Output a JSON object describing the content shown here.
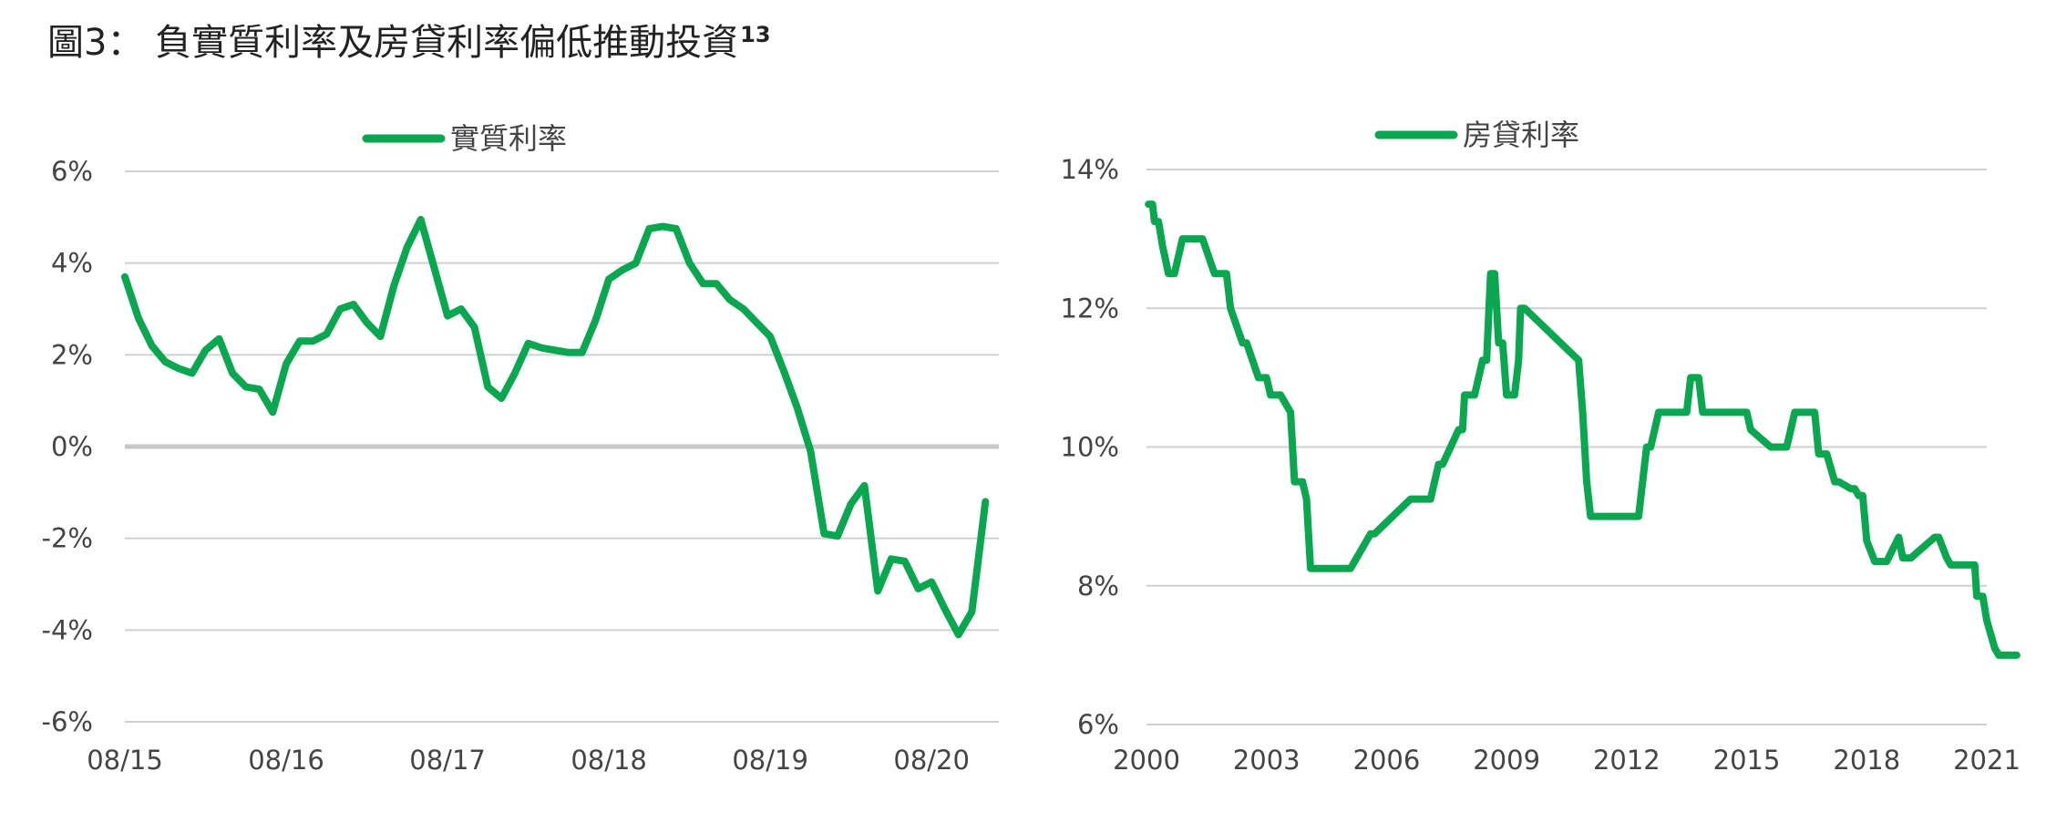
{
  "figure": {
    "title": "圖3： 負實質利率及房貸利率偏低推動投資",
    "footnote": "13"
  },
  "colors": {
    "line": "#0AA650",
    "grid": "#D0D0D0",
    "zero_line": "#C8C8C8",
    "text": "#444444"
  },
  "chart_data": [
    {
      "type": "line",
      "legend_position": "top-center",
      "grid": true,
      "ylim": [
        -6,
        6
      ],
      "yticks": [
        6,
        4,
        2,
        0,
        -2,
        -4,
        -6
      ],
      "ytick_labels": [
        "6%",
        "4%",
        "2%",
        "0%",
        "-2%",
        "-4%",
        "-6%"
      ],
      "xticks": [
        "08/15",
        "08/16",
        "08/17",
        "08/18",
        "08/19",
        "08/20"
      ],
      "xtick_positions": [
        2015.583,
        2016.583,
        2017.583,
        2018.583,
        2019.583,
        2020.583
      ],
      "xlim": [
        2015.583,
        2021.0
      ],
      "series": [
        {
          "name": "實質利率",
          "x": [
            2015.583,
            2015.667,
            2015.75,
            2015.833,
            2015.917,
            2016.0,
            2016.083,
            2016.167,
            2016.25,
            2016.333,
            2016.417,
            2016.5,
            2016.583,
            2016.667,
            2016.75,
            2016.833,
            2016.917,
            2017.0,
            2017.083,
            2017.167,
            2017.25,
            2017.333,
            2017.417,
            2017.5,
            2017.583,
            2017.667,
            2017.75,
            2017.833,
            2017.917,
            2018.0,
            2018.083,
            2018.167,
            2018.25,
            2018.333,
            2018.417,
            2018.5,
            2018.583,
            2018.667,
            2018.75,
            2018.833,
            2018.917,
            2019.0,
            2019.083,
            2019.167,
            2019.25,
            2019.333,
            2019.417,
            2019.5,
            2019.583,
            2019.667,
            2019.75,
            2019.833,
            2019.917,
            2020.0,
            2020.083,
            2020.167,
            2020.25,
            2020.333,
            2020.417,
            2020.5,
            2020.583,
            2020.667,
            2020.75,
            2020.833,
            2020.917
          ],
          "values": [
            3.7,
            2.8,
            2.2,
            1.85,
            1.7,
            1.6,
            2.1,
            2.35,
            1.6,
            1.3,
            1.25,
            0.75,
            1.8,
            2.3,
            2.3,
            2.45,
            3.0,
            3.1,
            2.7,
            2.4,
            3.5,
            4.35,
            4.95,
            3.9,
            2.85,
            3.0,
            2.6,
            1.3,
            1.05,
            1.6,
            2.25,
            2.15,
            2.1,
            2.05,
            2.05,
            2.75,
            3.65,
            3.85,
            4.0,
            4.75,
            4.8,
            4.75,
            4.0,
            3.55,
            3.55,
            3.2,
            3.0,
            2.7,
            2.4,
            1.65,
            0.85,
            -0.1,
            -1.9,
            -1.95,
            -1.25,
            -0.85,
            -3.15,
            -2.45,
            -2.5,
            -3.1,
            -2.95,
            -3.55,
            -4.1,
            -3.6,
            -1.2
          ]
        }
      ]
    },
    {
      "type": "line",
      "legend_position": "top-center",
      "grid": true,
      "ylim": [
        6,
        14
      ],
      "yticks": [
        14,
        12,
        10,
        8,
        6
      ],
      "ytick_labels": [
        "14%",
        "12%",
        "10%",
        "8%",
        "6%"
      ],
      "xticks": [
        "2000",
        "2003",
        "2006",
        "2009",
        "2012",
        "2015",
        "2018",
        "2021"
      ],
      "xtick_positions": [
        2000,
        2003,
        2006,
        2009,
        2012,
        2015,
        2018,
        2021
      ],
      "xlim": [
        2000,
        2021
      ],
      "series": [
        {
          "name": "房貸利率",
          "x": [
            2000.05,
            2000.15,
            2000.2,
            2000.3,
            2000.4,
            2000.55,
            2000.7,
            2000.9,
            2001.2,
            2001.4,
            2001.7,
            2001.9,
            2002.0,
            2002.1,
            2002.4,
            2002.5,
            2002.8,
            2003.0,
            2003.1,
            2003.3,
            2003.35,
            2003.6,
            2003.7,
            2003.9,
            2004.0,
            2004.1,
            2005.0,
            2005.1,
            2005.6,
            2005.7,
            2006.6,
            2006.7,
            2007.0,
            2007.1,
            2007.3,
            2007.4,
            2007.8,
            2007.9,
            2007.95,
            2008.1,
            2008.2,
            2008.4,
            2008.5,
            2008.6,
            2008.7,
            2008.8,
            2008.9,
            2009.0,
            2009.1,
            2009.2,
            2009.3,
            2009.35,
            2009.45,
            2010.8,
            2010.9,
            2011.0,
            2011.1,
            2011.3,
            2011.4,
            2011.6,
            2011.8,
            2011.9,
            2012.2,
            2012.3,
            2012.4,
            2012.5,
            2012.6,
            2012.8,
            2013.5,
            2013.6,
            2013.8,
            2013.9,
            2015.0,
            2015.1,
            2015.6,
            2015.7,
            2016.0,
            2016.1,
            2016.2,
            2016.3,
            2016.7,
            2016.8,
            2016.9,
            2017.0,
            2017.2,
            2017.3,
            2017.6,
            2017.7,
            2017.8,
            2017.9,
            2018.0,
            2018.2,
            2018.4,
            2018.5,
            2018.8,
            2018.9,
            2019.0,
            2019.1,
            2019.7,
            2019.8,
            2020.0,
            2020.1,
            2020.5,
            2020.55,
            2020.7,
            2020.75,
            2020.9,
            2021.0,
            2021.1,
            2021.2,
            2021.3,
            2021.4,
            2021.5,
            2021.6,
            2021.75
          ],
          "values": [
            13.5,
            13.5,
            13.25,
            13.25,
            12.9,
            12.5,
            12.5,
            13.0,
            13.0,
            13.0,
            12.5,
            12.5,
            12.5,
            12.0,
            11.5,
            11.5,
            11.0,
            11.0,
            10.75,
            10.75,
            10.75,
            10.5,
            9.5,
            9.5,
            9.25,
            8.25,
            8.25,
            8.25,
            8.75,
            8.75,
            9.25,
            9.25,
            9.25,
            9.25,
            9.75,
            9.75,
            10.25,
            10.25,
            10.75,
            10.75,
            10.75,
            11.25,
            11.25,
            12.5,
            12.5,
            11.5,
            11.5,
            10.75,
            10.75,
            10.75,
            11.25,
            12.0,
            12.0,
            11.25,
            10.5,
            9.5,
            9.0,
            9.0,
            9.0,
            9.0,
            9.0,
            9.0,
            9.0,
            9.0,
            9.5,
            10.0,
            10.0,
            10.5,
            10.5,
            11.0,
            11.0,
            10.5,
            10.5,
            10.25,
            10.0,
            10.0,
            10.0,
            10.25,
            10.5,
            10.5,
            10.5,
            9.9,
            9.9,
            9.9,
            9.5,
            9.5,
            9.4,
            9.4,
            9.3,
            9.3,
            8.65,
            8.35,
            8.35,
            8.35,
            8.7,
            8.4,
            8.4,
            8.4,
            8.7,
            8.7,
            8.4,
            8.3,
            8.3,
            8.3,
            8.3,
            7.85,
            7.85,
            7.5,
            7.3,
            7.1,
            7.0,
            7.0,
            7.0,
            7.0,
            7.0
          ]
        }
      ]
    }
  ]
}
